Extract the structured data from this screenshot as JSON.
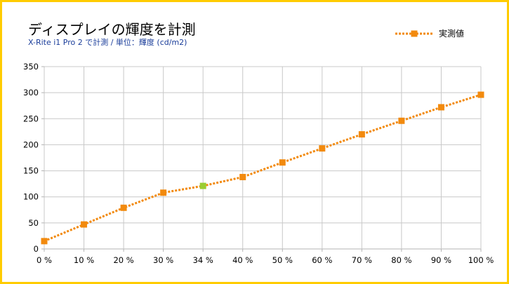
{
  "chart_data": {
    "type": "line",
    "title": "ディスプレイの輝度を計測",
    "subtitle": "X-Rite i1 Pro 2 で計測 / 単位：輝度 (cd/m2)",
    "categories": [
      "0 %",
      "10 %",
      "20 %",
      "30 %",
      "34 %",
      "40 %",
      "50 %",
      "60 %",
      "70 %",
      "80 %",
      "90 %",
      "100 %"
    ],
    "series": [
      {
        "name": "実測値",
        "values": [
          15,
          47,
          79,
          108,
          121,
          138,
          166,
          193,
          220,
          246,
          272,
          296
        ],
        "color": "#f28a0e",
        "highlight_index": 4,
        "highlight_color": "#9acd32"
      }
    ],
    "ylim": [
      0,
      350
    ],
    "yticks": [
      0,
      50,
      100,
      150,
      200,
      250,
      300,
      350
    ],
    "grid": true,
    "legend": "top-right",
    "xlabel": "",
    "ylabel": ""
  }
}
